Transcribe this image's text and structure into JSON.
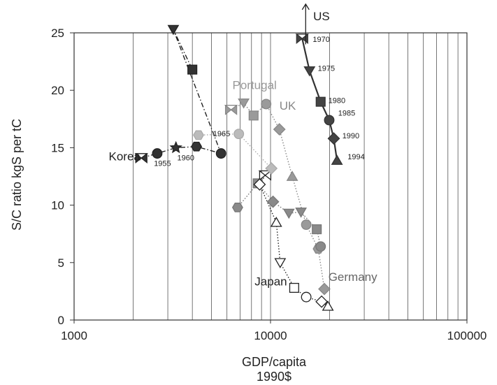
{
  "chart_data": {
    "type": "scatter",
    "title": "",
    "xlabel": "GDP/capita",
    "xlabel_unit": "1990$",
    "ylabel": "S/C ratio kgS per tC",
    "x_scale": "log",
    "xlim": [
      1000,
      100000
    ],
    "ylim": [
      0,
      25
    ],
    "x_ticks": [
      "1000",
      "10000",
      "100000"
    ],
    "y_ticks": [
      "0",
      "5",
      "10",
      "15",
      "20",
      "25"
    ],
    "grid": "vertical log gridlines",
    "series": [
      {
        "name": "US",
        "color": "#333333",
        "dash": "solid",
        "markers": [
          "bowtie",
          "triangle-down",
          "square",
          "circle",
          "diamond",
          "triangle-up"
        ],
        "fill": "#444444",
        "points": [
          [
            14500,
            24.5
          ],
          [
            15800,
            21.7
          ],
          [
            18000,
            19.0
          ],
          [
            19900,
            17.4
          ],
          [
            21000,
            15.8
          ],
          [
            21800,
            13.9
          ]
        ]
      },
      {
        "name": "UK",
        "color": "#888888",
        "dash": "dotted",
        "markers": [
          "bowtie",
          "triangle-down",
          "square",
          "circle",
          "diamond",
          "triangle-up",
          "circle",
          "hexagon",
          "diamond"
        ],
        "fill": "#9a9a9a",
        "points": [
          [
            6300,
            18.3
          ],
          [
            7300,
            18.9
          ],
          [
            8200,
            17.8
          ],
          [
            9500,
            18.8
          ],
          [
            11100,
            16.6
          ],
          [
            12900,
            12.5
          ],
          [
            15200,
            8.3
          ],
          [
            17500,
            6.2
          ],
          [
            18800,
            2.7
          ]
        ]
      },
      {
        "name": "Germany",
        "color": "#777777",
        "dash": "dotted",
        "markers": [
          "hexagon",
          "square",
          "diamond",
          "triangle-down",
          "triangle-down",
          "square",
          "circle"
        ],
        "fill": "#8a8a8a",
        "points": [
          [
            6800,
            9.8
          ],
          [
            8600,
            11.9
          ],
          [
            10300,
            10.3
          ],
          [
            12400,
            9.3
          ],
          [
            14300,
            9.4
          ],
          [
            17200,
            7.9
          ],
          [
            18000,
            6.4
          ]
        ]
      },
      {
        "name": "Japan",
        "color": "#222222",
        "dash": "dotted",
        "markers": [
          "bowtie",
          "diamond",
          "triangle-up",
          "triangle-down",
          "square",
          "circle",
          "diamond",
          "triangle-up"
        ],
        "fill": "#ffffff",
        "points": [
          [
            9400,
            12.6
          ],
          [
            8800,
            11.8
          ],
          [
            10700,
            8.5
          ],
          [
            11200,
            5.0
          ],
          [
            13200,
            2.8
          ],
          [
            15200,
            2.0
          ],
          [
            18200,
            1.6
          ],
          [
            19600,
            1.2
          ]
        ]
      },
      {
        "name": "Korea",
        "color": "#222222",
        "dash": "dashdot",
        "markers": [
          "bowtie",
          "circle",
          "star",
          "hexagon",
          "circle",
          "triangle-down",
          "square"
        ],
        "fill": "#333333",
        "points": [
          [
            2200,
            14.1
          ],
          [
            2650,
            14.5
          ],
          [
            3300,
            15.0
          ],
          [
            4200,
            15.1
          ],
          [
            5600,
            14.5
          ],
          [
            3200,
            25.3
          ],
          [
            4000,
            21.8
          ]
        ]
      },
      {
        "name": "Portugal",
        "color": "#aaaaaa",
        "dash": "dotted",
        "markers": [
          "hexagon",
          "circle",
          "diamond"
        ],
        "fill": "#bbbbbb",
        "points": [
          [
            4300,
            16.1
          ],
          [
            6900,
            16.2
          ],
          [
            10100,
            13.2
          ]
        ]
      }
    ],
    "annotations": [
      {
        "text": "US",
        "x": 16500,
        "y": 26.1
      },
      {
        "text": "UK",
        "x": 11100,
        "y": 18.3
      },
      {
        "text": "Portugal",
        "x": 6400,
        "y": 20.1
      },
      {
        "text": "Korea",
        "x": 1500,
        "y": 13.9
      },
      {
        "text": "Japan",
        "x": 8300,
        "y": 3.0
      },
      {
        "text": "Germany",
        "x": 19700,
        "y": 3.4
      },
      {
        "text": "1970",
        "x": 16400,
        "y": 24.2
      },
      {
        "text": "1975",
        "x": 17400,
        "y": 21.7
      },
      {
        "text": "1980",
        "x": 19700,
        "y": 18.9
      },
      {
        "text": "1985",
        "x": 22100,
        "y": 17.8
      },
      {
        "text": "1990",
        "x": 23200,
        "y": 15.8
      },
      {
        "text": "1994",
        "x": 24700,
        "y": 14.0
      },
      {
        "text": "1955",
        "x": 2550,
        "y": 13.4
      },
      {
        "text": "1960",
        "x": 3350,
        "y": 13.9
      },
      {
        "text": "1965",
        "x": 5100,
        "y": 16.0
      }
    ],
    "us_arrow": {
      "x": 15100,
      "y_from": 24.0,
      "y_to": 27.5
    }
  }
}
